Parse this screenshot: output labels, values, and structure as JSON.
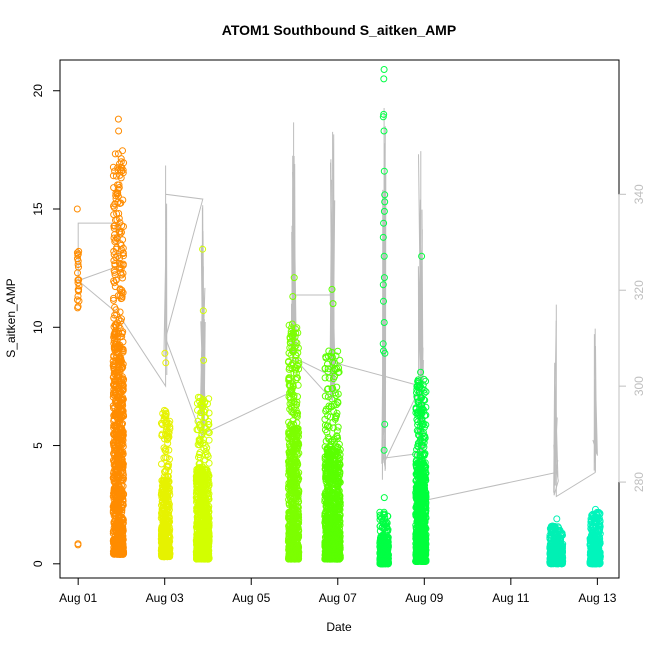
{
  "chart_data": {
    "type": "scatter",
    "title": "ATOM1 Southbound S_aitken_AMP",
    "xlabel": "Date",
    "ylabel": "S_aitken_AMP",
    "x_ticks": [
      "Aug 01",
      "Aug 03",
      "Aug 05",
      "Aug 07",
      "Aug 09",
      "Aug 11",
      "Aug 13"
    ],
    "x_tick_days": [
      1,
      3,
      5,
      7,
      9,
      11,
      13
    ],
    "xlim": [
      0.58,
      13.5
    ],
    "ylim": [
      -0.6,
      21.3
    ],
    "y_ticks": [
      0,
      5,
      10,
      15,
      20
    ],
    "y2_ticks": [
      280,
      300,
      320,
      340
    ],
    "y2lim": [
      260,
      368
    ],
    "grid": false,
    "legend": "none",
    "series": [
      {
        "day": 1.0,
        "spread": 0.02,
        "color": "#ff8c00",
        "count": 22,
        "ymin": 10.8,
        "ymax": 13.3,
        "outliers": [
          15.0,
          0.8,
          0.85
        ],
        "dense": 0
      },
      {
        "day": 1.93,
        "spread": 0.12,
        "color": "#ff8c00",
        "count": 900,
        "ymin": 0.4,
        "ymax": 17.5,
        "outliers": [
          18.8,
          18.3
        ],
        "dense": 0.7
      },
      {
        "day": 3.02,
        "spread": 0.1,
        "color": "#e6f200",
        "count": 420,
        "ymin": 0.3,
        "ymax": 6.5,
        "outliers": [
          8.9,
          8.5
        ],
        "dense": 0.7
      },
      {
        "day": 3.88,
        "spread": 0.15,
        "color": "#d2ff00",
        "count": 800,
        "ymin": 0.2,
        "ymax": 7.2,
        "outliers": [
          13.3,
          10.7,
          8.6
        ],
        "dense": 0.8
      },
      {
        "day": 5.98,
        "spread": 0.12,
        "color": "#7cff00",
        "count": 700,
        "ymin": 0.2,
        "ymax": 10.3,
        "outliers": [
          12.1,
          11.3
        ],
        "dense": 0.7
      },
      {
        "day": 6.88,
        "spread": 0.18,
        "color": "#5aff00",
        "count": 900,
        "ymin": 0.2,
        "ymax": 9.0,
        "outliers": [
          11.6,
          11.0
        ],
        "dense": 0.8
      },
      {
        "day": 8.07,
        "spread": 0.1,
        "color": "#00ff44",
        "count": 380,
        "ymin": 0.0,
        "ymax": 2.2,
        "outliers": [
          20.9,
          20.5,
          19.0,
          18.9,
          18.3,
          16.6,
          15.6,
          15.3,
          14.9,
          14.4,
          13.8,
          13.0,
          12.1,
          11.8,
          11.1,
          10.2,
          9.3,
          9.0,
          8.9,
          5.9,
          4.8,
          2.8
        ],
        "dense": 0.8
      },
      {
        "day": 8.92,
        "spread": 0.12,
        "color": "#00ff3c",
        "count": 800,
        "ymin": 0.1,
        "ymax": 7.8,
        "outliers": [
          13.0,
          8.1
        ],
        "dense": 0.7
      },
      {
        "day": 12.05,
        "spread": 0.15,
        "color": "#00f0b4",
        "count": 380,
        "ymin": 0.0,
        "ymax": 1.6,
        "outliers": [
          1.9
        ],
        "dense": 0.6
      },
      {
        "day": 12.95,
        "spread": 0.12,
        "color": "#00f5bc",
        "count": 380,
        "ymin": 0.0,
        "ymax": 2.2,
        "outliers": [
          2.3
        ],
        "dense": 0.6
      }
    ],
    "secondary_line": {
      "color": "#bdbdbd",
      "points": [
        [
          1.0,
          322
        ],
        [
          1.0,
          334
        ],
        [
          1.93,
          334
        ],
        [
          1.93,
          325
        ],
        [
          1.0,
          322
        ],
        [
          1.93,
          315
        ],
        [
          3.02,
          300
        ],
        [
          3.02,
          346
        ],
        [
          3.02,
          340
        ],
        [
          3.88,
          339
        ],
        [
          3.02,
          310
        ],
        [
          3.88,
          289
        ],
        [
          3.88,
          330
        ],
        [
          3.88,
          290
        ],
        [
          5.98,
          299
        ],
        [
          5.98,
          355
        ],
        [
          5.98,
          319
        ],
        [
          6.88,
          319
        ],
        [
          6.88,
          297
        ],
        [
          5.98,
          306
        ],
        [
          6.88,
          302
        ],
        [
          6.88,
          353
        ],
        [
          6.88,
          305
        ],
        [
          8.92,
          300
        ],
        [
          8.07,
          284
        ],
        [
          8.07,
          358
        ],
        [
          8.07,
          285
        ],
        [
          8.92,
          286
        ],
        [
          8.92,
          349
        ],
        [
          8.92,
          276
        ],
        [
          12.05,
          282
        ],
        [
          12.05,
          317
        ],
        [
          12.05,
          277
        ],
        [
          12.95,
          282
        ],
        [
          12.95,
          312
        ],
        [
          12.95,
          282
        ]
      ],
      "bursts": [
        {
          "day": 3.02,
          "lo": 300,
          "hi": 346,
          "n": 6
        },
        {
          "day": 3.88,
          "lo": 290,
          "hi": 340,
          "n": 40
        },
        {
          "day": 5.98,
          "lo": 305,
          "hi": 355,
          "n": 30
        },
        {
          "day": 6.88,
          "lo": 297,
          "hi": 353,
          "n": 45
        },
        {
          "day": 8.07,
          "lo": 280,
          "hi": 358,
          "n": 20
        },
        {
          "day": 8.92,
          "lo": 276,
          "hi": 349,
          "n": 45
        },
        {
          "day": 12.05,
          "lo": 277,
          "hi": 317,
          "n": 15
        },
        {
          "day": 12.95,
          "lo": 282,
          "hi": 312,
          "n": 10
        }
      ]
    }
  }
}
